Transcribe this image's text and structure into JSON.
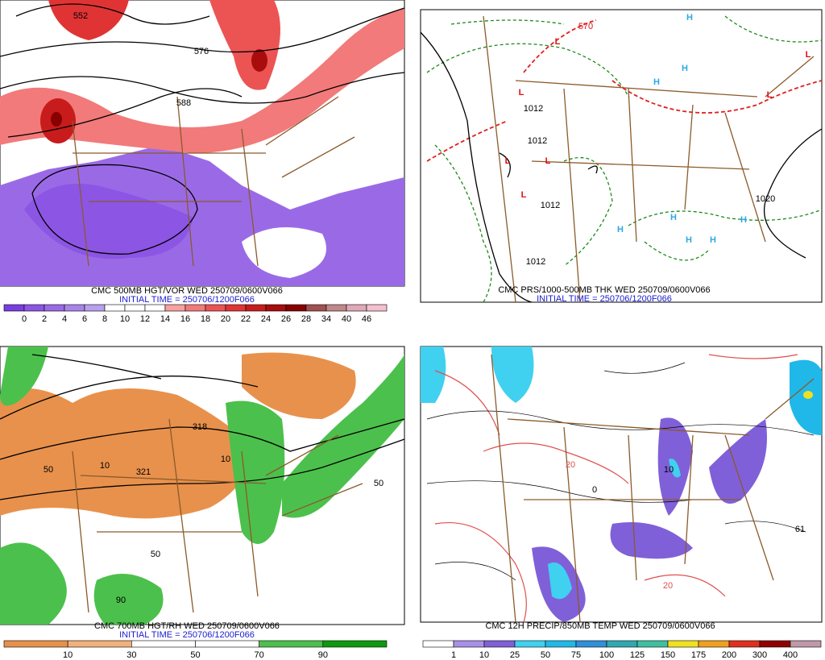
{
  "panels": [
    {
      "title": "CMC 500MB HGT/VOR WED 250709/0600V066",
      "initial_time": "INITIAL TIME = 250706/1200F066",
      "colorbar": {
        "labels": [
          0,
          2,
          4,
          6,
          8,
          10,
          12,
          14,
          16,
          18,
          20,
          22,
          24,
          26,
          28,
          34,
          40,
          46
        ],
        "colors": [
          "#7a3ee0",
          "#8c55e4",
          "#9a6ae6",
          "#a884ea",
          "#b9a0ee",
          "#ffffff",
          "#ffffff",
          "#ffffff",
          "#f7a0a0",
          "#f27a7a",
          "#ec5454",
          "#e03434",
          "#c81c1c",
          "#a80c0c",
          "#880000",
          "#a05050",
          "#c08888",
          "#e0a8b8",
          "#f4c0d0"
        ]
      },
      "map_labels": [
        "552",
        "576",
        "588"
      ]
    },
    {
      "title": "CMC PRS/1000-500MB THK WED 250709/0600V066",
      "initial_time": "INITIAL TIME = 250706/1200F066",
      "map_labels": [
        "L",
        "L",
        "L",
        "L",
        "L",
        "L",
        "L",
        "H",
        "H",
        "H",
        "H",
        "H",
        "H",
        "H",
        "H",
        "1012",
        "1012",
        "1012",
        "1020",
        "1012",
        "570"
      ]
    },
    {
      "title": "CMC 700MB HGT/RH WED 250709/0600V066",
      "initial_time": "INITIAL TIME = 250706/1200F066",
      "colorbar": {
        "labels": [
          10,
          30,
          50,
          70,
          90
        ],
        "colors": [
          "#e8914c",
          "#f2b07a",
          "#ffffff",
          "#ffffff",
          "#4cc04c",
          "#0e9a0e"
        ]
      },
      "map_labels": [
        "10",
        "321",
        "318",
        "50",
        "90",
        "50",
        "10",
        "50"
      ]
    },
    {
      "title": "CMC 12H PRECIP/850MB TEMP WED 250709/0600V066",
      "colorbar": {
        "labels": [
          1,
          10,
          25,
          50,
          75,
          100,
          125,
          150,
          175,
          200,
          300,
          400
        ],
        "colors": [
          "#ffffff",
          "#a890e8",
          "#8060d8",
          "#40d0f0",
          "#20b8e8",
          "#3090d8",
          "#30a8b0",
          "#40c0a0",
          "#f0e020",
          "#f0a020",
          "#e03020",
          "#900000",
          "#c098a8"
        ]
      },
      "map_labels": [
        "20",
        "20",
        "0",
        "10",
        "61"
      ]
    }
  ]
}
